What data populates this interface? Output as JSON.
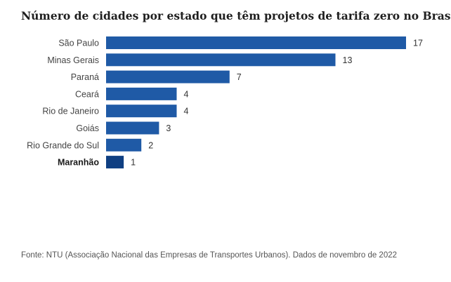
{
  "chart_data": {
    "type": "bar",
    "orientation": "horizontal",
    "title": "Número de cidades por estado que têm projetos de tarifa zero no Brasil",
    "categories": [
      "São Paulo",
      "Minas Gerais",
      "Paraná",
      "Ceará",
      "Rio de Janeiro",
      "Goiás",
      "Rio Grande do Sul",
      "Maranhão"
    ],
    "values": [
      17,
      13,
      7,
      4,
      4,
      3,
      2,
      1
    ],
    "highlighted_category": "Maranhão",
    "xlim": [
      0,
      17
    ],
    "grid": false,
    "data_labels": true,
    "colors": {
      "bar": "#1f5aa6",
      "bar_highlight": "#0f3f82"
    }
  },
  "footer": {
    "source": "Fonte: NTU (Associação Nacional das Empresas de Transportes Urbanos). Dados de novembro de 2022"
  }
}
